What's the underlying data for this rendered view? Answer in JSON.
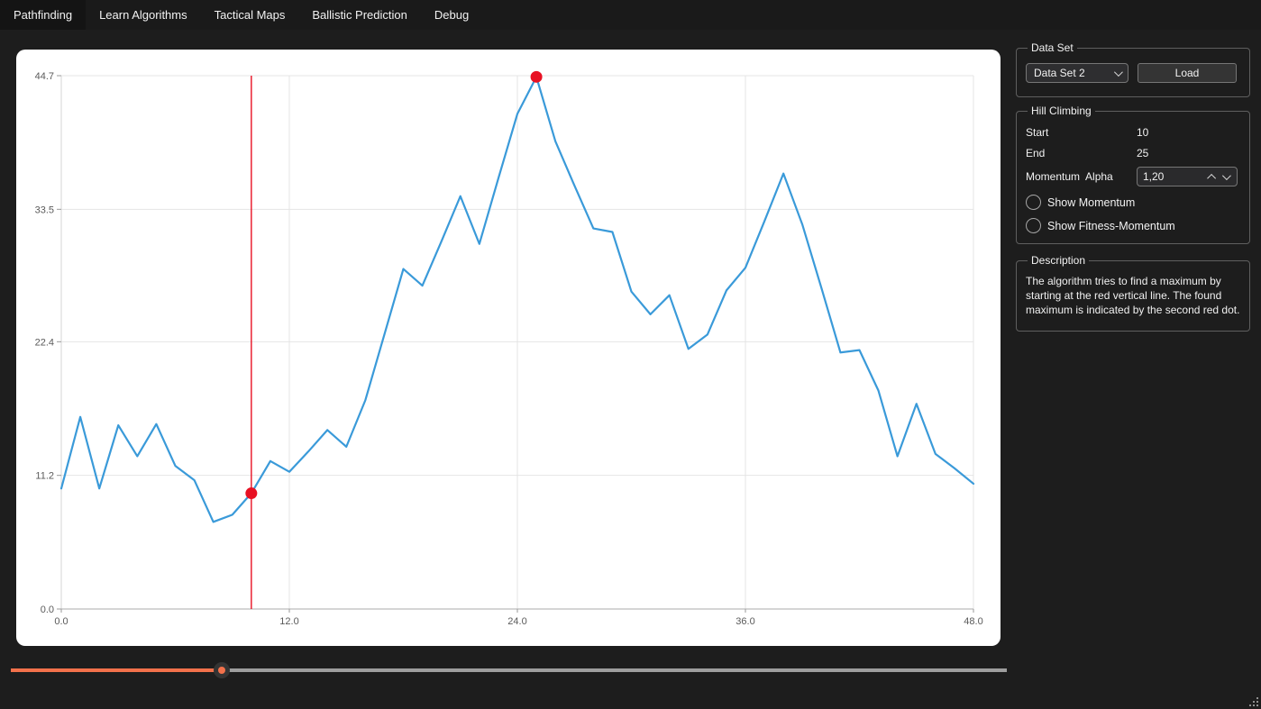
{
  "tabs": [
    {
      "label": "Pathfinding",
      "selected": true
    },
    {
      "label": "Learn Algorithms",
      "selected": false
    },
    {
      "label": "Tactical Maps",
      "selected": false
    },
    {
      "label": "Ballistic Prediction",
      "selected": false
    },
    {
      "label": "Debug",
      "selected": false
    }
  ],
  "data_set_panel": {
    "title": "Data Set",
    "combo_value": "Data Set 2",
    "load_label": "Load"
  },
  "hill_climbing": {
    "title": "Hill Climbing",
    "start_label": "Start",
    "start_value": "10",
    "end_label": "End",
    "end_value": "25",
    "momentum_alpha_label": "Momentum  Alpha",
    "momentum_alpha_value": "1,20",
    "show_momentum_label": "Show Momentum",
    "show_momentum_checked": false,
    "show_fitness_momentum_label": "Show Fitness-Momentum",
    "show_fitness_momentum_checked": false
  },
  "description_panel": {
    "title": "Description",
    "text": "The algorithm tries to find a maximum by starting at the red vertical line. The found maximum is indicated by the second red dot."
  },
  "chart_data": {
    "type": "line",
    "x_start": 0,
    "x_step": 1,
    "values": [
      10.1,
      16.1,
      10.1,
      15.4,
      12.8,
      15.5,
      12.0,
      10.8,
      7.3,
      7.9,
      9.7,
      12.4,
      11.5,
      13.2,
      15.0,
      13.6,
      17.5,
      23.0,
      28.5,
      27.1,
      30.8,
      34.6,
      30.6,
      36.1,
      41.5,
      44.6,
      39.2,
      35.5,
      31.9,
      31.6,
      26.6,
      24.7,
      26.3,
      21.8,
      23.0,
      26.7,
      28.6,
      32.5,
      36.5,
      32.2,
      26.9,
      21.5,
      21.7,
      18.3,
      12.8,
      17.2,
      13.0,
      11.8,
      10.5
    ],
    "xlim": [
      0,
      48
    ],
    "ylim": [
      0,
      44.7
    ],
    "x_ticks": [
      0,
      12,
      24,
      36,
      48
    ],
    "x_tick_labels": [
      "0.0",
      "12.0",
      "24.0",
      "36.0",
      "48.0"
    ],
    "y_ticks": [
      0,
      11.2,
      22.4,
      33.5,
      44.7
    ],
    "y_tick_labels": [
      "0.0",
      "11.2",
      "22.4",
      "33.5",
      "44.7"
    ],
    "grid": true,
    "legend": "none",
    "title": "",
    "xlabel": "",
    "ylabel": "",
    "line_color": "#3a9ad9",
    "vline": {
      "x": 10,
      "color": "#e81123"
    },
    "markers": [
      {
        "x": 10,
        "y": 9.7
      },
      {
        "x": 25,
        "y": 44.6
      }
    ],
    "marker_color": "#e81123",
    "background": "#ffffff",
    "grid_color": "#e4e4e4",
    "tick_label_color": "#5a5a5a"
  },
  "slider": {
    "fill_percent": 21.2,
    "fill_color": "#f2714b",
    "track_color": "#9e9e9e"
  }
}
